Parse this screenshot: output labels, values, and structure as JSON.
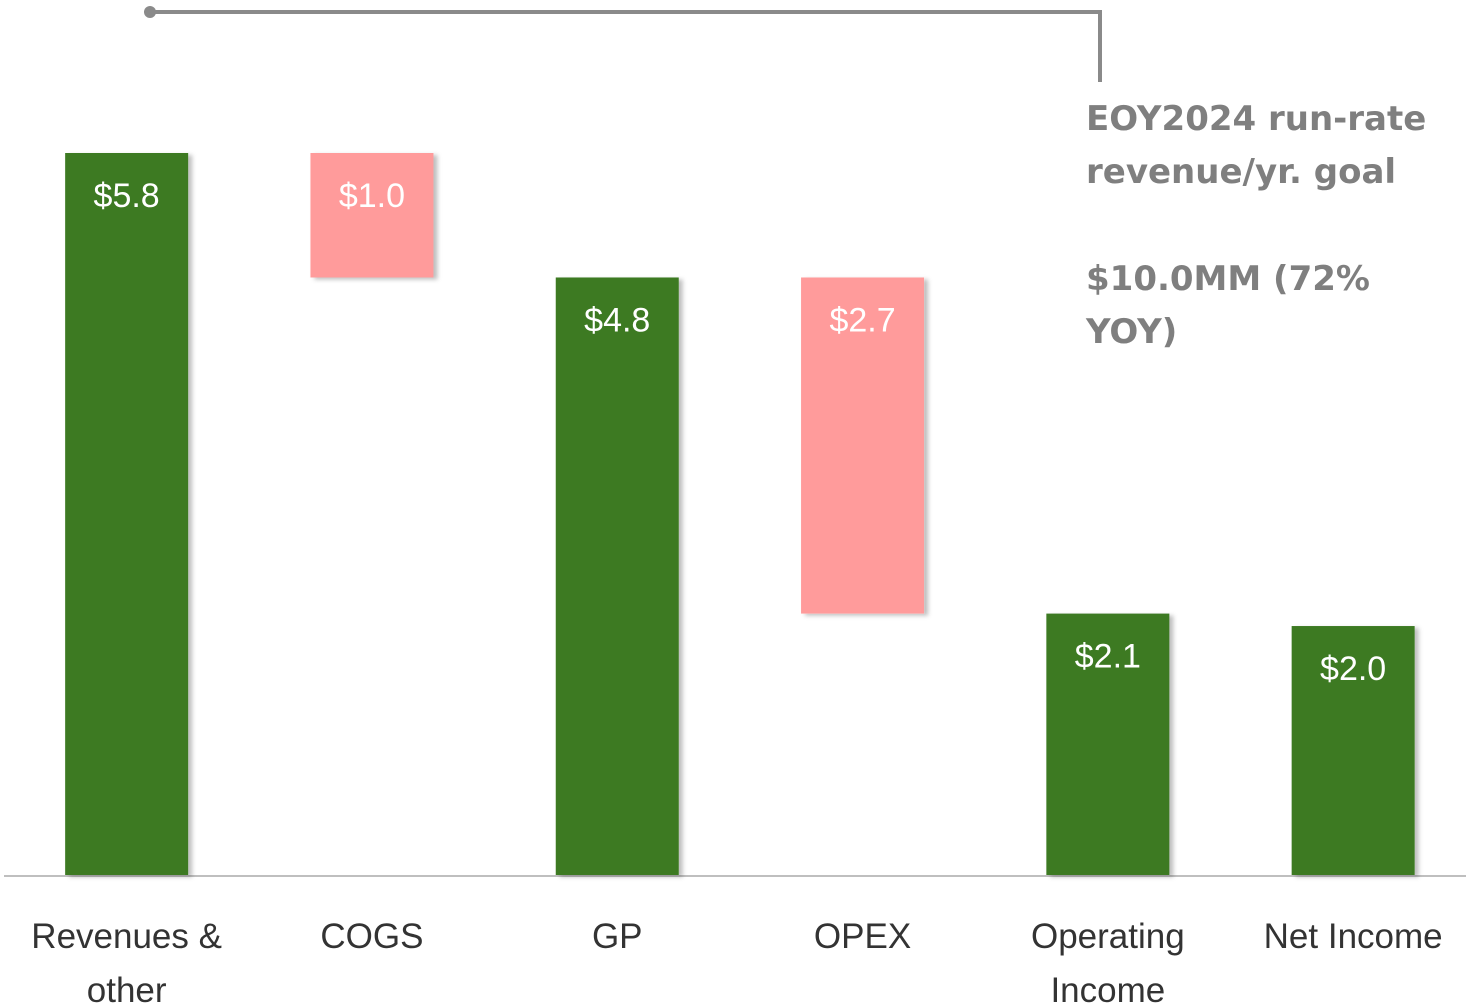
{
  "chart_data": {
    "type": "waterfall",
    "categories": [
      "Revenues & other",
      "COGS",
      "GP",
      "OPEX",
      "Operating Income",
      "Net Income"
    ],
    "values": [
      5.8,
      1.0,
      4.8,
      2.7,
      2.1,
      2.0
    ],
    "value_labels": [
      "$5.8",
      "$1.0",
      "$4.8",
      "$2.7",
      "$2.1",
      "$2.0"
    ],
    "measures": [
      "total",
      "decrease",
      "total",
      "decrease",
      "total",
      "total"
    ],
    "colors": {
      "total": "#3d7a24",
      "decrease": "#ff9b9b"
    },
    "ylim": [
      0,
      5.8
    ],
    "annotations": [
      "EOY2024 run-rate revenue/yr. goal",
      "$10.0MM (72% YOY)"
    ]
  }
}
